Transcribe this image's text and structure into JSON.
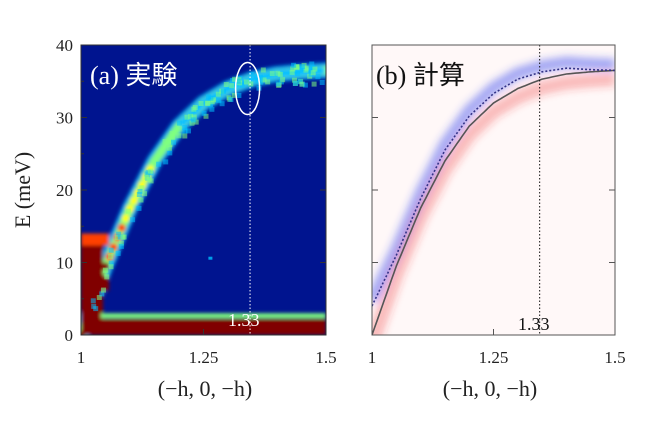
{
  "chart_data": [
    {
      "type": "heatmap",
      "panel_label": "(a) 実験",
      "xlabel": "(−h, 0, −h)",
      "ylabel": "E (meV)",
      "xlim": [
        1,
        1.5
      ],
      "ylim": [
        0,
        40
      ],
      "x_ticks": [
        "1",
        "1.25",
        "1.5"
      ],
      "y_ticks": [
        "0",
        "10",
        "20",
        "30",
        "40"
      ],
      "marker_line": {
        "x": 1.345,
        "label": "1.33"
      },
      "highlight_ellipse": {
        "x": 1.34,
        "y": 34
      },
      "dispersion": {
        "x": [
          1.0,
          1.05,
          1.1,
          1.15,
          1.2,
          1.25,
          1.3,
          1.35,
          1.4,
          1.45,
          1.5
        ],
        "y": [
          0,
          9.5,
          17.5,
          24.0,
          28.8,
          32.0,
          34.0,
          35.3,
          36.0,
          36.3,
          36.5
        ]
      },
      "colormap": [
        "#000080",
        "#0040ff",
        "#00c0ff",
        "#80ff80",
        "#ffff00",
        "#ff4000",
        "#800000"
      ],
      "grid": false
    },
    {
      "type": "line",
      "panel_label": "(b) 計算",
      "xlabel": "(−h, 0, −h)",
      "ylabel": "",
      "xlim": [
        1,
        1.5
      ],
      "ylim": [
        0,
        40
      ],
      "x_ticks": [
        "1",
        "1.25",
        "1.5"
      ],
      "marker_line": {
        "x": 1.345,
        "label": "1.33"
      },
      "series": [
        {
          "style": "solid",
          "color": "#555555",
          "x": [
            1.0,
            1.05,
            1.1,
            1.15,
            1.2,
            1.25,
            1.3,
            1.35,
            1.4,
            1.45,
            1.5
          ],
          "y": [
            0,
            9.5,
            17.5,
            24.0,
            28.8,
            32.0,
            34.0,
            35.3,
            36.0,
            36.3,
            36.5
          ]
        },
        {
          "style": "dotted",
          "color": "#333388",
          "x": [
            1.0,
            1.05,
            1.1,
            1.15,
            1.2,
            1.25,
            1.3,
            1.35,
            1.4,
            1.45,
            1.5
          ],
          "y": [
            4.0,
            11.0,
            18.8,
            25.5,
            30.2,
            33.3,
            35.3,
            36.3,
            36.8,
            36.6,
            36.5
          ]
        }
      ],
      "band_colors": {
        "upper": "#3344ee",
        "lower": "#ee3333"
      },
      "grid": false
    }
  ]
}
